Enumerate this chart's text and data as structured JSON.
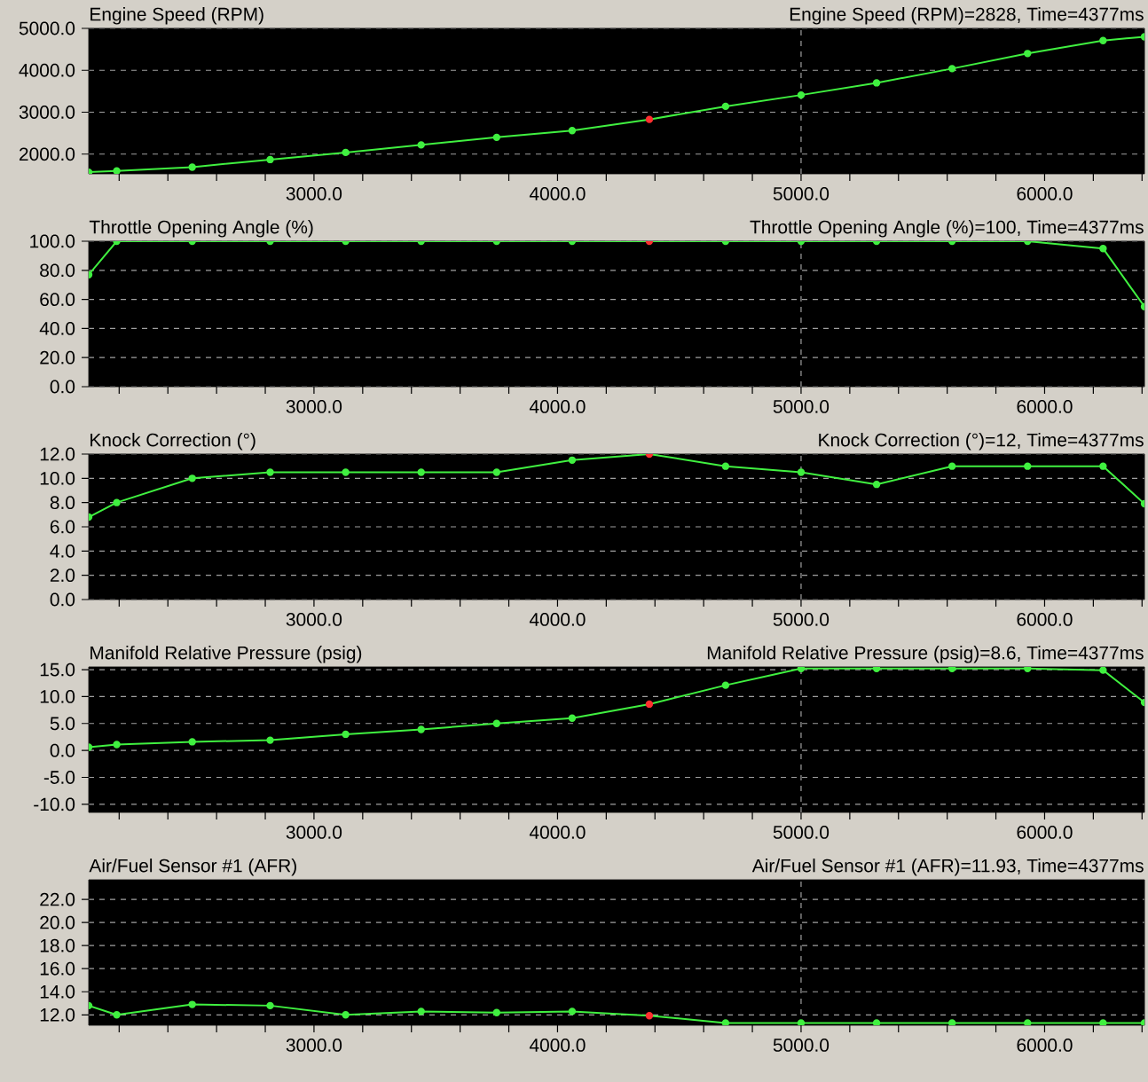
{
  "chart_data": [
    {
      "type": "line",
      "title": "Engine Speed (RPM)",
      "annotations": [
        "Engine Speed (RPM)=2828, Time=4377ms"
      ],
      "x": [
        2075,
        2190,
        2500,
        2820,
        3130,
        3440,
        3750,
        4060,
        4377,
        4690,
        5000,
        5310,
        5620,
        5930,
        6240,
        6410
      ],
      "series": [
        {
          "color": "#40f040",
          "colors": [
            "#40f040",
            "#40f040",
            "#40f040",
            "#40f040",
            "#40f040",
            "#40f040",
            "#40f040",
            "#40f040",
            "#ff3030",
            "#40f040",
            "#40f040",
            "#40f040",
            "#40f040",
            "#40f040",
            "#40f040",
            "#40f040"
          ],
          "values": [
            1570,
            1600,
            1690,
            1870,
            2040,
            2220,
            2400,
            2560,
            2828,
            3140,
            3410,
            3700,
            4040,
            4400,
            4710,
            4800
          ]
        }
      ],
      "xlim": [
        2075,
        6410
      ],
      "ylim": [
        1530,
        5000
      ],
      "xticks": [
        {
          "value": 2200,
          "label": null
        },
        {
          "value": 2400,
          "label": null
        },
        {
          "value": 2600,
          "label": null
        },
        {
          "value": 2800,
          "label": null
        },
        {
          "value": 3000,
          "label": "3000.0"
        },
        {
          "value": 3200,
          "label": null
        },
        {
          "value": 3400,
          "label": null
        },
        {
          "value": 3600,
          "label": null
        },
        {
          "value": 3800,
          "label": null
        },
        {
          "value": 4000,
          "label": "4000.0"
        },
        {
          "value": 4200,
          "label": null
        },
        {
          "value": 4400,
          "label": null
        },
        {
          "value": 4600,
          "label": null
        },
        {
          "value": 4800,
          "label": null
        },
        {
          "value": 5000,
          "label": "5000.0"
        },
        {
          "value": 5200,
          "label": null
        },
        {
          "value": 5400,
          "label": null
        },
        {
          "value": 5600,
          "label": null
        },
        {
          "value": 5800,
          "label": null
        },
        {
          "value": 6000,
          "label": "6000.0"
        },
        {
          "value": 6200,
          "label": null
        },
        {
          "value": 6400,
          "label": null
        }
      ],
      "yticks": [
        {
          "value": 2000,
          "label": "2000.0"
        },
        {
          "value": 3000,
          "label": "3000.0"
        },
        {
          "value": 4000,
          "label": "4000.0"
        },
        {
          "value": 5000,
          "label": "5000.0"
        }
      ],
      "grid": "y",
      "marker": "circle",
      "ref_lines": [
        {
          "axis": "x",
          "value": 5000,
          "color": "#a0a0a0",
          "line_style": "dashed"
        }
      ]
    },
    {
      "type": "line",
      "title": "Throttle Opening Angle (%)",
      "annotations": [
        "Throttle Opening Angle (%)=100, Time=4377ms"
      ],
      "x": [
        2075,
        2190,
        2500,
        2820,
        3130,
        3440,
        3750,
        4060,
        4377,
        4690,
        5000,
        5310,
        5620,
        5930,
        6240,
        6410
      ],
      "series": [
        {
          "color": "#40f040",
          "colors": [
            "#40f040",
            "#40f040",
            "#40f040",
            "#40f040",
            "#40f040",
            "#40f040",
            "#40f040",
            "#40f040",
            "#ff3030",
            "#40f040",
            "#40f040",
            "#40f040",
            "#40f040",
            "#40f040",
            "#40f040",
            "#40f040"
          ],
          "values": [
            77,
            100,
            100,
            100,
            100,
            100,
            100,
            100,
            100,
            100,
            100,
            100,
            100,
            100,
            95,
            55
          ]
        }
      ],
      "xlim": [
        2075,
        6410
      ],
      "ylim": [
        0,
        100
      ],
      "xticks": [
        {
          "value": 2200,
          "label": null
        },
        {
          "value": 2400,
          "label": null
        },
        {
          "value": 2600,
          "label": null
        },
        {
          "value": 2800,
          "label": null
        },
        {
          "value": 3000,
          "label": "3000.0"
        },
        {
          "value": 3200,
          "label": null
        },
        {
          "value": 3400,
          "label": null
        },
        {
          "value": 3600,
          "label": null
        },
        {
          "value": 3800,
          "label": null
        },
        {
          "value": 4000,
          "label": "4000.0"
        },
        {
          "value": 4200,
          "label": null
        },
        {
          "value": 4400,
          "label": null
        },
        {
          "value": 4600,
          "label": null
        },
        {
          "value": 4800,
          "label": null
        },
        {
          "value": 5000,
          "label": "5000.0"
        },
        {
          "value": 5200,
          "label": null
        },
        {
          "value": 5400,
          "label": null
        },
        {
          "value": 5600,
          "label": null
        },
        {
          "value": 5800,
          "label": null
        },
        {
          "value": 6000,
          "label": "6000.0"
        },
        {
          "value": 6200,
          "label": null
        },
        {
          "value": 6400,
          "label": null
        }
      ],
      "yticks": [
        {
          "value": 0,
          "label": "0.0"
        },
        {
          "value": 20,
          "label": "20.0"
        },
        {
          "value": 40,
          "label": "40.0"
        },
        {
          "value": 60,
          "label": "60.0"
        },
        {
          "value": 80,
          "label": "80.0"
        },
        {
          "value": 100,
          "label": "100.0"
        }
      ],
      "grid": "y",
      "marker": "circle",
      "ref_lines": [
        {
          "axis": "x",
          "value": 5000,
          "color": "#a0a0a0",
          "line_style": "dashed"
        }
      ]
    },
    {
      "type": "line",
      "title": "Knock Correction (°)",
      "annotations": [
        "Knock Correction (°)=12, Time=4377ms"
      ],
      "x": [
        2075,
        2190,
        2500,
        2820,
        3130,
        3440,
        3750,
        4060,
        4377,
        4690,
        5000,
        5310,
        5620,
        5930,
        6240,
        6410
      ],
      "series": [
        {
          "color": "#40f040",
          "colors": [
            "#40f040",
            "#40f040",
            "#40f040",
            "#40f040",
            "#40f040",
            "#40f040",
            "#40f040",
            "#40f040",
            "#ff3030",
            "#40f040",
            "#40f040",
            "#40f040",
            "#40f040",
            "#40f040",
            "#40f040",
            "#40f040"
          ],
          "values": [
            6.8,
            8.0,
            10.0,
            10.5,
            10.5,
            10.5,
            10.5,
            11.5,
            12,
            11.0,
            10.5,
            9.5,
            11.0,
            11.0,
            11.0,
            7.9
          ]
        }
      ],
      "xlim": [
        2075,
        6410
      ],
      "ylim": [
        0,
        12
      ],
      "xticks": [
        {
          "value": 2200,
          "label": null
        },
        {
          "value": 2400,
          "label": null
        },
        {
          "value": 2600,
          "label": null
        },
        {
          "value": 2800,
          "label": null
        },
        {
          "value": 3000,
          "label": "3000.0"
        },
        {
          "value": 3200,
          "label": null
        },
        {
          "value": 3400,
          "label": null
        },
        {
          "value": 3600,
          "label": null
        },
        {
          "value": 3800,
          "label": null
        },
        {
          "value": 4000,
          "label": "4000.0"
        },
        {
          "value": 4200,
          "label": null
        },
        {
          "value": 4400,
          "label": null
        },
        {
          "value": 4600,
          "label": null
        },
        {
          "value": 4800,
          "label": null
        },
        {
          "value": 5000,
          "label": "5000.0"
        },
        {
          "value": 5200,
          "label": null
        },
        {
          "value": 5400,
          "label": null
        },
        {
          "value": 5600,
          "label": null
        },
        {
          "value": 5800,
          "label": null
        },
        {
          "value": 6000,
          "label": "6000.0"
        },
        {
          "value": 6200,
          "label": null
        },
        {
          "value": 6400,
          "label": null
        }
      ],
      "yticks": [
        {
          "value": 0,
          "label": "0.0"
        },
        {
          "value": 2,
          "label": "2.0"
        },
        {
          "value": 4,
          "label": "4.0"
        },
        {
          "value": 6,
          "label": "6.0"
        },
        {
          "value": 8,
          "label": "8.0"
        },
        {
          "value": 10,
          "label": "10.0"
        },
        {
          "value": 12,
          "label": "12.0"
        }
      ],
      "grid": "y",
      "marker": "circle",
      "ref_lines": [
        {
          "axis": "x",
          "value": 5000,
          "color": "#a0a0a0",
          "line_style": "dashed"
        }
      ]
    },
    {
      "type": "line",
      "title": "Manifold Relative Pressure (psig)",
      "annotations": [
        "Manifold Relative Pressure (psig)=8.6, Time=4377ms"
      ],
      "x": [
        2075,
        2190,
        2500,
        2820,
        3130,
        3440,
        3750,
        4060,
        4377,
        4690,
        5000,
        5310,
        5620,
        5930,
        6240,
        6410
      ],
      "series": [
        {
          "color": "#40f040",
          "colors": [
            "#40f040",
            "#40f040",
            "#40f040",
            "#40f040",
            "#40f040",
            "#40f040",
            "#40f040",
            "#40f040",
            "#ff3030",
            "#40f040",
            "#40f040",
            "#40f040",
            "#40f040",
            "#40f040",
            "#40f040",
            "#40f040"
          ],
          "values": [
            0.6,
            1.1,
            1.6,
            1.9,
            3.0,
            3.9,
            5.0,
            6.0,
            8.6,
            12.1,
            15.2,
            15.2,
            15.2,
            15.2,
            14.9,
            8.9
          ]
        }
      ],
      "xlim": [
        2075,
        6410
      ],
      "ylim": [
        -11.5,
        15.5
      ],
      "xticks": [
        {
          "value": 2200,
          "label": null
        },
        {
          "value": 2400,
          "label": null
        },
        {
          "value": 2600,
          "label": null
        },
        {
          "value": 2800,
          "label": null
        },
        {
          "value": 3000,
          "label": "3000.0"
        },
        {
          "value": 3200,
          "label": null
        },
        {
          "value": 3400,
          "label": null
        },
        {
          "value": 3600,
          "label": null
        },
        {
          "value": 3800,
          "label": null
        },
        {
          "value": 4000,
          "label": "4000.0"
        },
        {
          "value": 4200,
          "label": null
        },
        {
          "value": 4400,
          "label": null
        },
        {
          "value": 4600,
          "label": null
        },
        {
          "value": 4800,
          "label": null
        },
        {
          "value": 5000,
          "label": "5000.0"
        },
        {
          "value": 5200,
          "label": null
        },
        {
          "value": 5400,
          "label": null
        },
        {
          "value": 5600,
          "label": null
        },
        {
          "value": 5800,
          "label": null
        },
        {
          "value": 6000,
          "label": "6000.0"
        },
        {
          "value": 6200,
          "label": null
        },
        {
          "value": 6400,
          "label": null
        }
      ],
      "yticks": [
        {
          "value": -10,
          "label": "-10.0"
        },
        {
          "value": -5,
          "label": "-5.0"
        },
        {
          "value": 0,
          "label": "0.0"
        },
        {
          "value": 5,
          "label": "5.0"
        },
        {
          "value": 10,
          "label": "10.0"
        },
        {
          "value": 15,
          "label": "15.0"
        }
      ],
      "grid": "y",
      "marker": "circle",
      "ref_lines": [
        {
          "axis": "x",
          "value": 5000,
          "color": "#a0a0a0",
          "line_style": "dashed"
        }
      ]
    },
    {
      "type": "line",
      "title": "Air/Fuel Sensor #1 (AFR)",
      "annotations": [
        "Air/Fuel Sensor #1 (AFR)=11.93, Time=4377ms"
      ],
      "x": [
        2075,
        2190,
        2500,
        2820,
        3130,
        3440,
        3750,
        4060,
        4377,
        4690,
        5000,
        5310,
        5620,
        5930,
        6240,
        6410
      ],
      "series": [
        {
          "color": "#40f040",
          "colors": [
            "#40f040",
            "#40f040",
            "#40f040",
            "#40f040",
            "#40f040",
            "#40f040",
            "#40f040",
            "#40f040",
            "#ff3030",
            "#40f040",
            "#40f040",
            "#40f040",
            "#40f040",
            "#40f040",
            "#40f040",
            "#40f040"
          ],
          "values": [
            12.8,
            12.0,
            12.9,
            12.8,
            12.0,
            12.3,
            12.2,
            12.3,
            11.93,
            11.3,
            11.3,
            11.3,
            11.3,
            11.3,
            11.3,
            11.3
          ]
        }
      ],
      "xlim": [
        2075,
        6410
      ],
      "ylim": [
        11.1,
        23.7
      ],
      "xticks": [
        {
          "value": 2200,
          "label": null
        },
        {
          "value": 2400,
          "label": null
        },
        {
          "value": 2600,
          "label": null
        },
        {
          "value": 2800,
          "label": null
        },
        {
          "value": 3000,
          "label": "3000.0"
        },
        {
          "value": 3200,
          "label": null
        },
        {
          "value": 3400,
          "label": null
        },
        {
          "value": 3600,
          "label": null
        },
        {
          "value": 3800,
          "label": null
        },
        {
          "value": 4000,
          "label": "4000.0"
        },
        {
          "value": 4200,
          "label": null
        },
        {
          "value": 4400,
          "label": null
        },
        {
          "value": 4600,
          "label": null
        },
        {
          "value": 4800,
          "label": null
        },
        {
          "value": 5000,
          "label": "5000.0"
        },
        {
          "value": 5200,
          "label": null
        },
        {
          "value": 5400,
          "label": null
        },
        {
          "value": 5600,
          "label": null
        },
        {
          "value": 5800,
          "label": null
        },
        {
          "value": 6000,
          "label": "6000.0"
        },
        {
          "value": 6200,
          "label": null
        },
        {
          "value": 6400,
          "label": null
        }
      ],
      "yticks": [
        {
          "value": 12,
          "label": "12.0"
        },
        {
          "value": 14,
          "label": "14.0"
        },
        {
          "value": 16,
          "label": "16.0"
        },
        {
          "value": 18,
          "label": "18.0"
        },
        {
          "value": 20,
          "label": "20.0"
        },
        {
          "value": 22,
          "label": "22.0"
        }
      ],
      "grid": "y",
      "marker": "circle",
      "ref_lines": [
        {
          "axis": "x",
          "value": 5000,
          "color": "#a0a0a0",
          "line_style": "dashed"
        }
      ]
    }
  ]
}
